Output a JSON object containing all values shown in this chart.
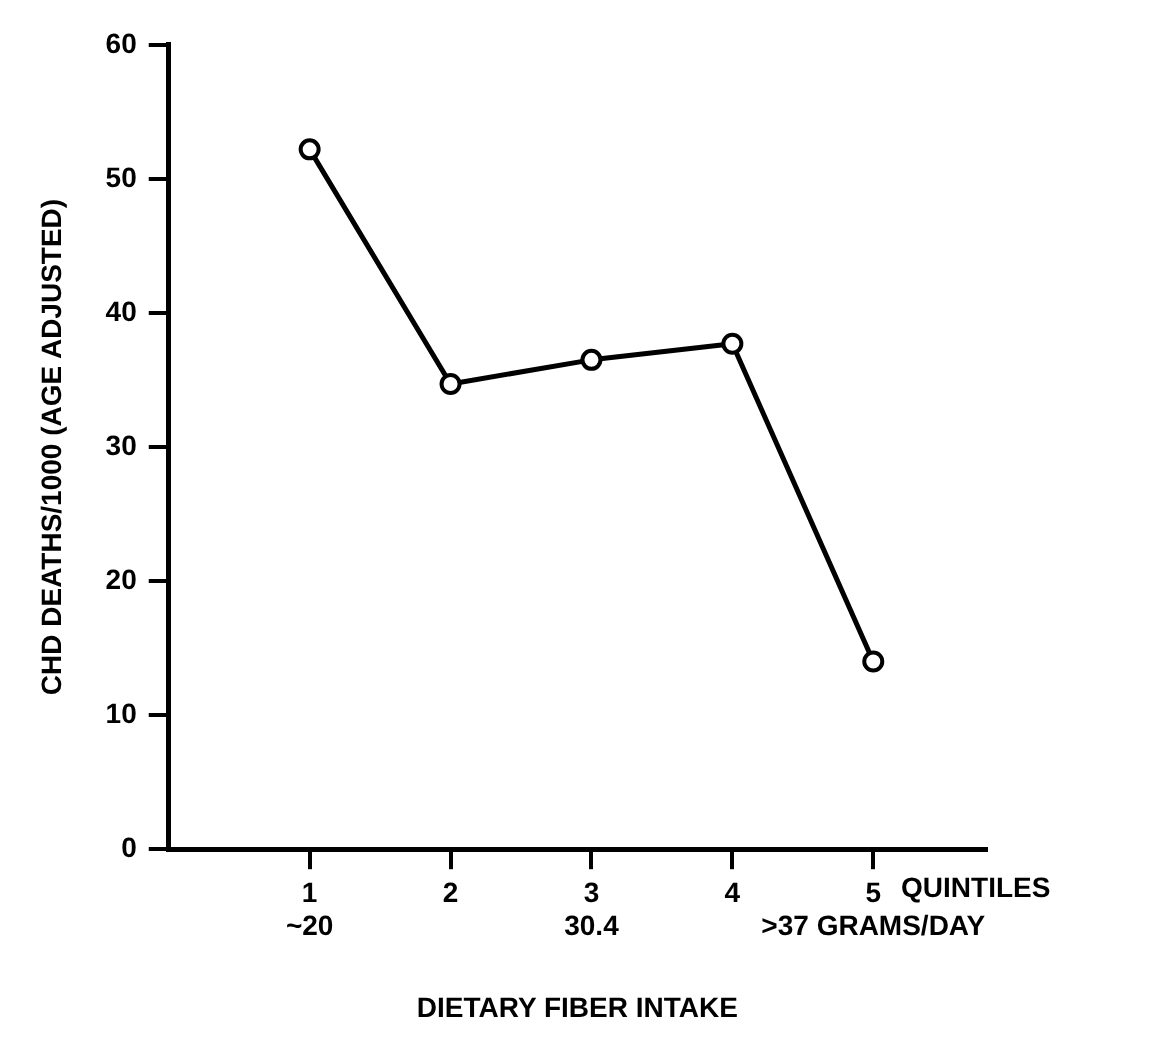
{
  "chart_data": {
    "type": "line",
    "xlabel": "DIETARY FIBER INTAKE",
    "ylabel": "CHD DEATHS/1000 (AGE ADJUSTED)",
    "categories": [
      "1\n~20",
      "2",
      "3\n30.4",
      "4",
      "5\n>37 GRAMS/DAY"
    ],
    "series": [
      {
        "color": "#000000",
        "values": [
          52.2,
          34.7,
          36.5,
          37.7,
          14.0
        ]
      }
    ],
    "ylim": [
      0,
      60
    ],
    "yticks": [
      0,
      10,
      20,
      30,
      40,
      50,
      60
    ],
    "grid": false,
    "legend": false,
    "marker": "circle",
    "line_style": "solid",
    "annotations": [
      "QUINTILES"
    ]
  }
}
